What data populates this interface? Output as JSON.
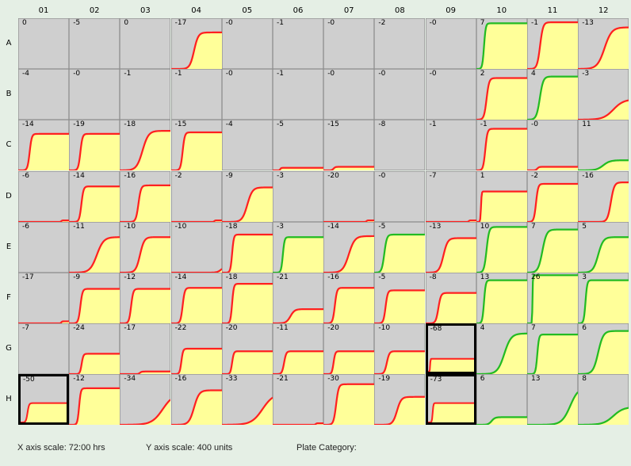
{
  "chart_data": {
    "type": "plate-growth-curves",
    "columns": [
      "01",
      "02",
      "03",
      "04",
      "05",
      "06",
      "07",
      "08",
      "09",
      "10",
      "11",
      "12"
    ],
    "rows": [
      "A",
      "B",
      "C",
      "D",
      "E",
      "F",
      "G",
      "H"
    ],
    "colors": {
      "background": "#e5efe5",
      "well": "#cfcfcf",
      "grid": "#8c8c8c",
      "area": "#ffff99",
      "reduced": "#ff2020",
      "increased": "#22bb22"
    },
    "wells": {
      "A": [
        {
          "v": "0"
        },
        {
          "v": "-5"
        },
        {
          "v": "0"
        },
        {
          "v": "-17",
          "p": 1,
          "lag": 0.2,
          "rate": 0.5,
          "ymax": 0.72,
          "c": "r"
        },
        {
          "v": "-0"
        },
        {
          "v": "-1"
        },
        {
          "v": "-0"
        },
        {
          "v": "-2"
        },
        {
          "v": "-0"
        },
        {
          "v": "7",
          "p": 1,
          "lag": 0.05,
          "rate": 0.2,
          "ymax": 0.9,
          "c": "g"
        },
        {
          "v": "-1",
          "p": 1,
          "lag": 0.08,
          "rate": 0.35,
          "ymax": 0.92,
          "c": "r"
        },
        {
          "v": "-13",
          "p": 1,
          "lag": 0.1,
          "rate": 0.85,
          "ymax": 0.82,
          "c": "r"
        }
      ],
      "B": [
        {
          "v": "-4"
        },
        {
          "v": "-0"
        },
        {
          "v": "-1"
        },
        {
          "v": "-1"
        },
        {
          "v": "-0"
        },
        {
          "v": "-1"
        },
        {
          "v": "-0"
        },
        {
          "v": "-0"
        },
        {
          "v": "-0"
        },
        {
          "v": "2",
          "p": 1,
          "lag": 0.05,
          "rate": 0.3,
          "ymax": 0.82,
          "c": "r"
        },
        {
          "v": "4",
          "p": 1,
          "lag": 0.05,
          "rate": 0.4,
          "ymax": 0.85,
          "c": "g"
        },
        {
          "v": "-3",
          "p": 1,
          "lag": 0.1,
          "rate": 1.2,
          "ymax": 0.4,
          "c": "r"
        }
      ],
      "C": [
        {
          "v": "-14",
          "p": 1,
          "lag": 0.1,
          "rate": 0.25,
          "ymax": 0.72,
          "c": "r"
        },
        {
          "v": "-19",
          "p": 1,
          "lag": 0.1,
          "rate": 0.25,
          "ymax": 0.72,
          "c": "r"
        },
        {
          "v": "-18",
          "p": 1,
          "lag": 0.1,
          "rate": 0.7,
          "ymax": 0.78,
          "c": "r"
        },
        {
          "v": "-15",
          "p": 1,
          "lag": 0.1,
          "rate": 0.25,
          "ymax": 0.75,
          "c": "r"
        },
        {
          "v": "-4"
        },
        {
          "v": "-5",
          "p": 1,
          "lag": 0.1,
          "rate": 0.1,
          "ymax": 0.05,
          "c": "r"
        },
        {
          "v": "-15",
          "p": 1,
          "lag": 0.1,
          "rate": 0.2,
          "ymax": 0.07,
          "c": "r"
        },
        {
          "v": "-8"
        },
        {
          "v": "-1"
        },
        {
          "v": "-1",
          "p": 1,
          "lag": 0.05,
          "rate": 0.25,
          "ymax": 0.82,
          "c": "r"
        },
        {
          "v": "-0",
          "p": 1,
          "lag": 0.1,
          "rate": 0.2,
          "ymax": 0.07,
          "c": "r"
        },
        {
          "v": "11",
          "p": 1,
          "lag": 0.1,
          "rate": 0.8,
          "ymax": 0.2,
          "c": "g"
        }
      ],
      "D": [
        {
          "v": "-6",
          "p": 1,
          "lag": 0.8,
          "rate": 0.1,
          "ymax": 0.03,
          "c": "r"
        },
        {
          "v": "-14",
          "p": 1,
          "lag": 0.12,
          "rate": 0.25,
          "ymax": 0.7,
          "c": "r"
        },
        {
          "v": "-16",
          "p": 1,
          "lag": 0.22,
          "rate": 0.3,
          "ymax": 0.72,
          "c": "r"
        },
        {
          "v": "-2",
          "p": 1,
          "lag": 0.8,
          "rate": 0.1,
          "ymax": 0.03,
          "c": "r"
        },
        {
          "v": "-9",
          "p": 1,
          "lag": 0.2,
          "rate": 0.6,
          "ymax": 0.68,
          "c": "r"
        },
        {
          "v": "-3"
        },
        {
          "v": "-20",
          "p": 1,
          "lag": 0.8,
          "rate": 0.1,
          "ymax": 0.03,
          "c": "r"
        },
        {
          "v": "-0"
        },
        {
          "v": "-7",
          "p": 1,
          "lag": 0.8,
          "rate": 0.1,
          "ymax": 0.03,
          "c": "r"
        },
        {
          "v": "1",
          "p": 1,
          "lag": 0.05,
          "rate": 0.08,
          "ymax": 0.6,
          "c": "r"
        },
        {
          "v": "-2",
          "p": 1,
          "lag": 0.05,
          "rate": 0.25,
          "ymax": 0.75,
          "c": "r"
        },
        {
          "v": "-16",
          "p": 1,
          "lag": 0.45,
          "rate": 0.4,
          "ymax": 0.78,
          "c": "r"
        }
      ],
      "E": [
        {
          "v": "-6"
        },
        {
          "v": "-11",
          "p": 1,
          "lag": 0.15,
          "rate": 0.8,
          "ymax": 0.7,
          "c": "r"
        },
        {
          "v": "-10",
          "p": 1,
          "lag": 0.15,
          "rate": 0.5,
          "ymax": 0.7,
          "c": "r"
        },
        {
          "v": "-10",
          "p": 1,
          "lag": 0.75,
          "rate": 0.5,
          "ymax": 0.15,
          "c": "r"
        },
        {
          "v": "-18",
          "p": 1,
          "lag": 0.1,
          "rate": 0.2,
          "ymax": 0.75,
          "c": "r"
        },
        {
          "v": "-3",
          "p": 1,
          "lag": 0.1,
          "rate": 0.2,
          "ymax": 0.7,
          "c": "g"
        },
        {
          "v": "-14",
          "p": 1,
          "lag": 0.15,
          "rate": 0.7,
          "ymax": 0.72,
          "c": "r"
        },
        {
          "v": "-5",
          "p": 1,
          "lag": 0.05,
          "rate": 0.3,
          "ymax": 0.75,
          "c": "g"
        },
        {
          "v": "-13",
          "p": 1,
          "lag": 0.1,
          "rate": 0.5,
          "ymax": 0.68,
          "c": "r"
        },
        {
          "v": "10",
          "p": 1,
          "lag": 0.05,
          "rate": 0.3,
          "ymax": 0.9,
          "c": "g"
        },
        {
          "v": "7",
          "p": 1,
          "lag": 0.05,
          "rate": 0.5,
          "ymax": 0.85,
          "c": "g"
        },
        {
          "v": "5",
          "p": 1,
          "lag": 0.1,
          "rate": 0.6,
          "ymax": 0.7,
          "c": "g"
        }
      ],
      "F": [
        {
          "v": "-17",
          "p": 1,
          "lag": 0.8,
          "rate": 0.1,
          "ymax": 0.04,
          "c": "r"
        },
        {
          "v": "-9",
          "p": 1,
          "lag": 0.1,
          "rate": 0.25,
          "ymax": 0.68,
          "c": "r"
        },
        {
          "v": "-12",
          "p": 1,
          "lag": 0.1,
          "rate": 0.25,
          "ymax": 0.68,
          "c": "r"
        },
        {
          "v": "-14",
          "p": 1,
          "lag": 0.1,
          "rate": 0.25,
          "ymax": 0.7,
          "c": "r"
        },
        {
          "v": "-18",
          "p": 1,
          "lag": 0.1,
          "rate": 0.2,
          "ymax": 0.78,
          "c": "r"
        },
        {
          "v": "-21",
          "p": 1,
          "lag": 0.1,
          "rate": 0.5,
          "ymax": 0.28,
          "c": "r"
        },
        {
          "v": "-16",
          "p": 1,
          "lag": 0.1,
          "rate": 0.25,
          "ymax": 0.7,
          "c": "r"
        },
        {
          "v": "-5",
          "p": 1,
          "lag": 0.1,
          "rate": 0.25,
          "ymax": 0.65,
          "c": "r"
        },
        {
          "v": "-8",
          "p": 1,
          "lag": 0.1,
          "rate": 0.3,
          "ymax": 0.6,
          "c": "r"
        },
        {
          "v": "13",
          "p": 1,
          "lag": 0.05,
          "rate": 0.2,
          "ymax": 0.85,
          "c": "g"
        },
        {
          "v": "26",
          "p": 1,
          "lag": 0.08,
          "rate": 0.05,
          "ymax": 0.95,
          "c": "g"
        },
        {
          "v": "3",
          "p": 1,
          "lag": 0.05,
          "rate": 0.2,
          "ymax": 0.85,
          "c": "g"
        }
      ],
      "G": [
        {
          "v": "-7"
        },
        {
          "v": "-24",
          "p": 1,
          "lag": 0.15,
          "rate": 0.2,
          "ymax": 0.4,
          "c": "r"
        },
        {
          "v": "-17",
          "p": 1,
          "lag": 0.3,
          "rate": 0.2,
          "ymax": 0.05,
          "c": "r"
        },
        {
          "v": "-22",
          "p": 1,
          "lag": 0.1,
          "rate": 0.2,
          "ymax": 0.5,
          "c": "r"
        },
        {
          "v": "-20",
          "p": 1,
          "lag": 0.1,
          "rate": 0.2,
          "ymax": 0.45,
          "c": "r"
        },
        {
          "v": "-11",
          "p": 1,
          "lag": 0.1,
          "rate": 0.25,
          "ymax": 0.45,
          "c": "r"
        },
        {
          "v": "-20",
          "p": 1,
          "lag": 0.1,
          "rate": 0.2,
          "ymax": 0.45,
          "c": "r"
        },
        {
          "v": "-10",
          "p": 1,
          "lag": 0.1,
          "rate": 0.3,
          "ymax": 0.45,
          "c": "r"
        },
        {
          "v": "-68",
          "p": 1,
          "lag": 0.02,
          "rate": 0.05,
          "ymax": 0.28,
          "c": "r",
          "high": 1
        },
        {
          "v": "4",
          "p": 1,
          "lag": 0.15,
          "rate": 0.8,
          "ymax": 0.8,
          "c": "g"
        },
        {
          "v": "7",
          "p": 1,
          "lag": 0.1,
          "rate": 0.2,
          "ymax": 0.78,
          "c": "g"
        },
        {
          "v": "6",
          "p": 1,
          "lag": 0.1,
          "rate": 0.6,
          "ymax": 0.85,
          "c": "g"
        }
      ],
      "H": [
        {
          "v": "-50",
          "p": 1,
          "lag": 0.05,
          "rate": 0.2,
          "ymax": 0.42,
          "c": "r",
          "high": 1
        },
        {
          "v": "-12",
          "p": 1,
          "lag": 0.1,
          "rate": 0.2,
          "ymax": 0.72,
          "c": "r"
        },
        {
          "v": "-34",
          "p": 1,
          "lag": 0.2,
          "rate": 1.3,
          "ymax": 0.62,
          "c": "r"
        },
        {
          "v": "-16",
          "p": 1,
          "lag": 0.15,
          "rate": 0.6,
          "ymax": 0.68,
          "c": "r"
        },
        {
          "v": "-33",
          "p": 1,
          "lag": 0.15,
          "rate": 1.3,
          "ymax": 0.62,
          "c": "r"
        },
        {
          "v": "-21",
          "p": 1,
          "lag": 0.8,
          "rate": 0.1,
          "ymax": 0.03,
          "c": "r"
        },
        {
          "v": "-30",
          "p": 1,
          "lag": 0.1,
          "rate": 0.3,
          "ymax": 0.8,
          "c": "r"
        },
        {
          "v": "-19",
          "p": 1,
          "lag": 0.2,
          "rate": 0.5,
          "ymax": 0.55,
          "c": "r"
        },
        {
          "v": "-73",
          "p": 1,
          "lag": 0.05,
          "rate": 0.1,
          "ymax": 0.42,
          "c": "r",
          "high": 1
        },
        {
          "v": "6",
          "p": 1,
          "lag": 0.1,
          "rate": 0.4,
          "ymax": 0.15,
          "c": "g"
        },
        {
          "v": "13",
          "p": 1,
          "lag": 0.35,
          "rate": 1.0,
          "ymax": 0.75,
          "c": "g"
        },
        {
          "v": "8",
          "p": 1,
          "lag": 0.1,
          "rate": 1.2,
          "ymax": 0.35,
          "c": "g"
        }
      ]
    }
  },
  "footer": {
    "x_scale": "X axis scale: 72:00 hrs",
    "y_scale": "Y axis scale: 400 units",
    "category": "Plate Category:"
  }
}
